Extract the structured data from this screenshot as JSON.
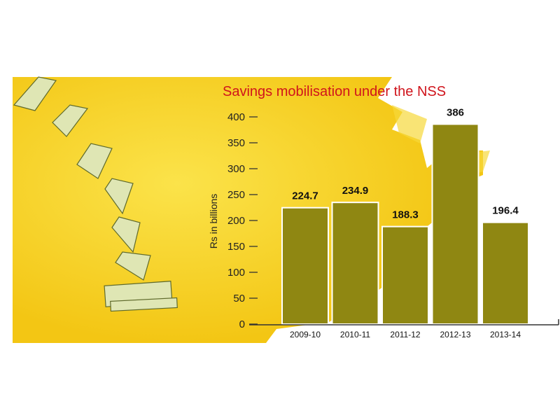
{
  "chart_data": {
    "type": "bar",
    "title": "Savings mobilisation under the NSS",
    "ylabel": "Rs in billions",
    "xlabel": "",
    "categories": [
      "2009-10",
      "2010-11",
      "2011-12",
      "2012-13",
      "2013-14"
    ],
    "values": [
      224.7,
      234.9,
      188.3,
      386,
      196.4
    ],
    "value_labels": [
      "224.7",
      "234.9",
      "188.3",
      "386",
      "196.4"
    ],
    "yticks": [
      "0",
      "50",
      "100",
      "150",
      "200",
      "250",
      "300",
      "350",
      "400"
    ],
    "ylim": [
      0,
      400
    ],
    "grid": false,
    "legend": "none",
    "bar_color": "#8f8712",
    "bar_outline": "#ffffff",
    "title_color": "#d0141c",
    "background_color": "#f7d51e"
  }
}
